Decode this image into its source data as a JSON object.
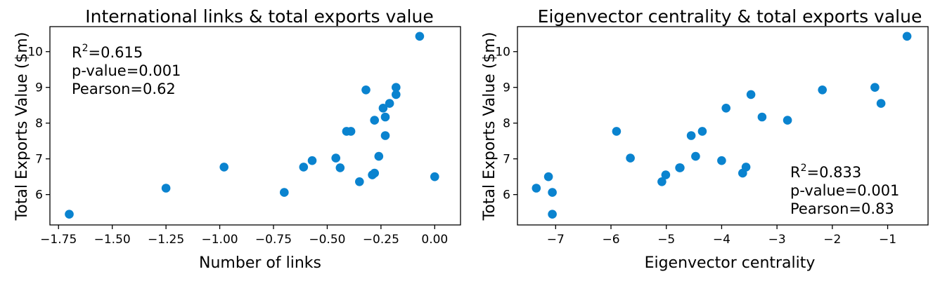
{
  "colors": {
    "marker": "#0a83cf",
    "axes": "#000000",
    "background": "#ffffff"
  },
  "chart_data": [
    {
      "type": "scatter",
      "title": "International links & total exports value",
      "xlabel": "Number of links",
      "ylabel": "Total Exports Value ($m)",
      "xlim": [
        -1.79,
        0.12
      ],
      "ylim": [
        5.15,
        10.7
      ],
      "x_ticks": [
        -1.75,
        -1.5,
        -1.25,
        -1.0,
        -0.75,
        -0.5,
        -0.25,
        0.0
      ],
      "x_tick_labels": [
        "−1.75",
        "−1.50",
        "−1.25",
        "−1.00",
        "−0.75",
        "−0.50",
        "−0.25",
        "0.00"
      ],
      "y_ticks": [
        6,
        7,
        8,
        9,
        10
      ],
      "y_tick_labels": [
        "6",
        "7",
        "8",
        "9",
        "10"
      ],
      "grid": false,
      "annotation": {
        "position": "top-left",
        "r2_label": "R",
        "r2_sup": "2",
        "r2_value": "=0.615",
        "p_value": "p-value=0.001",
        "pearson": "Pearson=0.62"
      },
      "points": [
        {
          "x": -1.7,
          "y": 5.45
        },
        {
          "x": -1.25,
          "y": 6.18
        },
        {
          "x": -0.98,
          "y": 6.77
        },
        {
          "x": -0.7,
          "y": 6.06
        },
        {
          "x": -0.61,
          "y": 6.77
        },
        {
          "x": -0.57,
          "y": 6.95
        },
        {
          "x": -0.46,
          "y": 7.02
        },
        {
          "x": -0.44,
          "y": 6.75
        },
        {
          "x": -0.41,
          "y": 7.77
        },
        {
          "x": -0.39,
          "y": 7.77
        },
        {
          "x": -0.35,
          "y": 6.36
        },
        {
          "x": -0.32,
          "y": 8.93
        },
        {
          "x": -0.29,
          "y": 6.55
        },
        {
          "x": -0.28,
          "y": 6.6
        },
        {
          "x": -0.28,
          "y": 8.08
        },
        {
          "x": -0.26,
          "y": 7.07
        },
        {
          "x": -0.24,
          "y": 8.42
        },
        {
          "x": -0.23,
          "y": 7.65
        },
        {
          "x": -0.23,
          "y": 8.17
        },
        {
          "x": -0.21,
          "y": 8.55
        },
        {
          "x": -0.18,
          "y": 9.0
        },
        {
          "x": -0.18,
          "y": 8.8
        },
        {
          "x": -0.07,
          "y": 10.43
        },
        {
          "x": 0.0,
          "y": 6.5
        }
      ]
    },
    {
      "type": "scatter",
      "title": "Eigenvector centrality & total exports value",
      "xlabel": "Eigenvector centrality",
      "ylabel": "Total Exports Value ($m)",
      "xlim": [
        -7.69,
        -0.27
      ],
      "ylim": [
        5.15,
        10.7
      ],
      "x_ticks": [
        -7,
        -6,
        -5,
        -4,
        -3,
        -2,
        -1
      ],
      "x_tick_labels": [
        "−7",
        "−6",
        "−5",
        "−4",
        "−3",
        "−2",
        "−1"
      ],
      "y_ticks": [
        6,
        7,
        8,
        9,
        10
      ],
      "y_tick_labels": [
        "6",
        "7",
        "8",
        "9",
        "10"
      ],
      "grid": false,
      "annotation": {
        "position": "bottom-right",
        "r2_label": "R",
        "r2_sup": "2",
        "r2_value": "=0.833",
        "p_value": "p-value=0.001",
        "pearson": "Pearson=0.83"
      },
      "points": [
        {
          "x": -7.35,
          "y": 6.18
        },
        {
          "x": -7.13,
          "y": 6.5
        },
        {
          "x": -7.06,
          "y": 6.06
        },
        {
          "x": -7.06,
          "y": 5.45
        },
        {
          "x": -5.9,
          "y": 7.77
        },
        {
          "x": -5.65,
          "y": 7.02
        },
        {
          "x": -5.08,
          "y": 6.36
        },
        {
          "x": -5.01,
          "y": 6.55
        },
        {
          "x": -4.76,
          "y": 6.75
        },
        {
          "x": -4.75,
          "y": 6.75
        },
        {
          "x": -4.55,
          "y": 7.65
        },
        {
          "x": -4.47,
          "y": 7.07
        },
        {
          "x": -4.35,
          "y": 7.77
        },
        {
          "x": -4.0,
          "y": 6.95
        },
        {
          "x": -3.92,
          "y": 8.42
        },
        {
          "x": -3.62,
          "y": 6.6
        },
        {
          "x": -3.56,
          "y": 6.77
        },
        {
          "x": -3.47,
          "y": 8.8
        },
        {
          "x": -3.27,
          "y": 8.17
        },
        {
          "x": -2.81,
          "y": 8.08
        },
        {
          "x": -2.18,
          "y": 8.93
        },
        {
          "x": -1.23,
          "y": 9.0
        },
        {
          "x": -1.12,
          "y": 8.55
        },
        {
          "x": -0.65,
          "y": 10.43
        }
      ]
    }
  ]
}
